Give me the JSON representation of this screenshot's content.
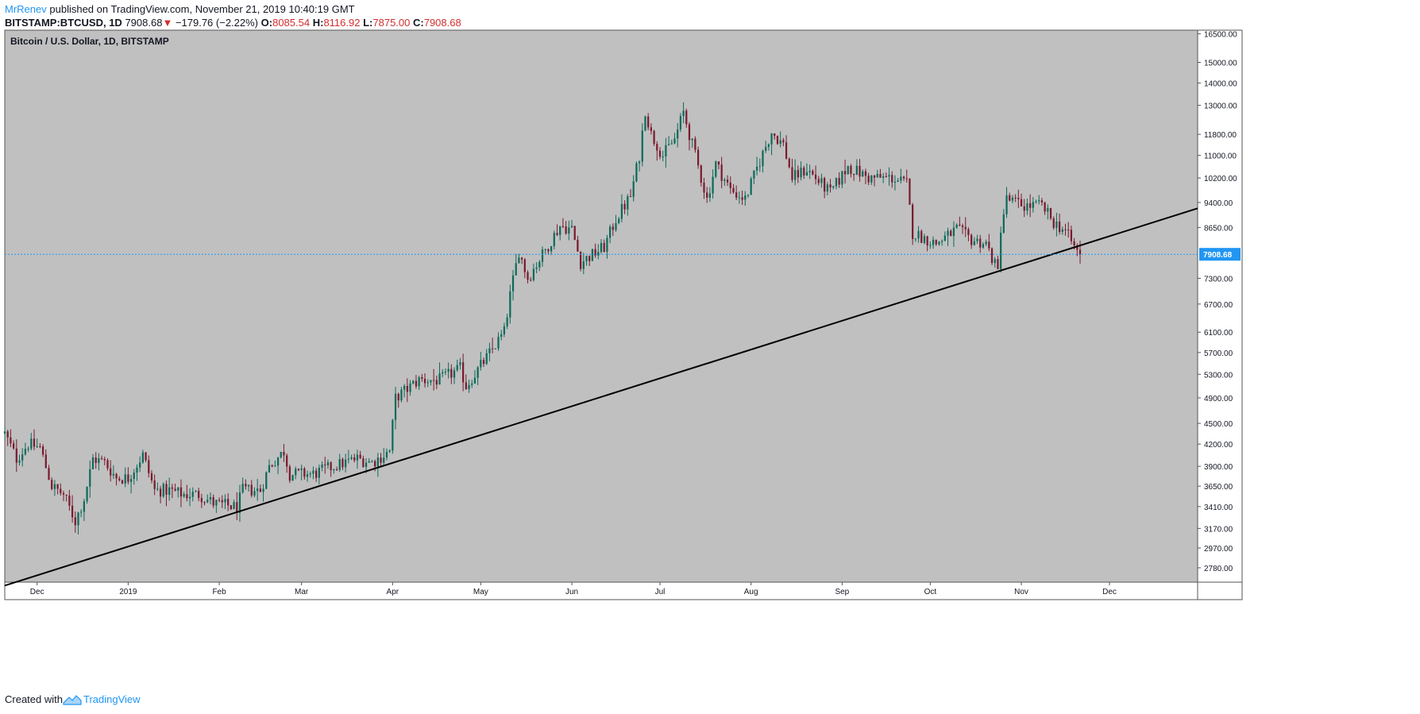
{
  "header": {
    "author": "MrRenev",
    "published_text": "published on TradingView.com, November 21, 2019 10:40:19 GMT",
    "symbol": "BITSTAMP:BTCUSD, 1D",
    "last": "7908.68",
    "change_arrow": "▼",
    "change": "−179.76 (−2.22%)",
    "open_label": "O:",
    "open": "8085.54",
    "high_label": "H:",
    "high": "8116.92",
    "low_label": "L:",
    "low": "7875.00",
    "close_label": "C:",
    "close": "7908.68"
  },
  "footer": {
    "created_with": "Created with",
    "brand": "TradingView"
  },
  "colors": {
    "background": "#c0c0c0",
    "up_candle": "#0d6a5a",
    "down_candle": "#7a1a2e",
    "price_line": "#2196f3",
    "trendline": "#000000",
    "down_text": "#d32f2f"
  },
  "chart_data": {
    "type": "candlestick",
    "title": "Bitcoin / U.S. Dollar, 1D, BITSTAMP",
    "scale": "log",
    "ylim": [
      2650,
      16700
    ],
    "y_ticks": [
      "16500.00",
      "15000.00",
      "14000.00",
      "13000.00",
      "11800.00",
      "11000.00",
      "10200.00",
      "9400.00",
      "8650.00",
      "7908.68",
      "7300.00",
      "6700.00",
      "6100.00",
      "5700.00",
      "5300.00",
      "4900.00",
      "4500.00",
      "4200.00",
      "3900.00",
      "3650.00",
      "3410.00",
      "3170.00",
      "2970.00",
      "2780.00"
    ],
    "x_ticks": [
      "Dec",
      "2019",
      "Feb",
      "Mar",
      "Apr",
      "May",
      "Jun",
      "Jul",
      "Aug",
      "Sep",
      "Oct",
      "Nov",
      "Dec"
    ],
    "last_price": 7908.68,
    "last_price_label": "7908.68",
    "close_path": [
      [
        "2018-11-20",
        4350
      ],
      [
        "2018-11-24",
        4000
      ],
      [
        "2018-11-28",
        4200
      ],
      [
        "2018-12-02",
        4150
      ],
      [
        "2018-12-06",
        3650
      ],
      [
        "2018-12-10",
        3550
      ],
      [
        "2018-12-14",
        3250
      ],
      [
        "2018-12-17",
        3500
      ],
      [
        "2018-12-20",
        4000
      ],
      [
        "2018-12-24",
        3950
      ],
      [
        "2018-12-28",
        3750
      ],
      [
        "2019-01-01",
        3750
      ],
      [
        "2019-01-06",
        4050
      ],
      [
        "2019-01-10",
        3600
      ],
      [
        "2019-01-15",
        3600
      ],
      [
        "2019-01-20",
        3550
      ],
      [
        "2019-01-25",
        3550
      ],
      [
        "2019-01-30",
        3450
      ],
      [
        "2019-02-04",
        3420
      ],
      [
        "2019-02-07",
        3400
      ],
      [
        "2019-02-09",
        3600
      ],
      [
        "2019-02-15",
        3600
      ],
      [
        "2019-02-18",
        3900
      ],
      [
        "2019-02-23",
        4100
      ],
      [
        "2019-02-25",
        3800
      ],
      [
        "2019-03-05",
        3800
      ],
      [
        "2019-03-12",
        3900
      ],
      [
        "2019-03-20",
        4000
      ],
      [
        "2019-03-25",
        3950
      ],
      [
        "2019-03-31",
        4100
      ],
      [
        "2019-04-02",
        4900
      ],
      [
        "2019-04-10",
        5200
      ],
      [
        "2019-04-17",
        5200
      ],
      [
        "2019-04-24",
        5400
      ],
      [
        "2019-04-26",
        5100
      ],
      [
        "2019-05-03",
        5600
      ],
      [
        "2019-05-09",
        6100
      ],
      [
        "2019-05-11",
        6900
      ],
      [
        "2019-05-14",
        8000
      ],
      [
        "2019-05-17",
        7300
      ],
      [
        "2019-05-22",
        7900
      ],
      [
        "2019-05-28",
        8700
      ],
      [
        "2019-06-01",
        8600
      ],
      [
        "2019-06-04",
        7700
      ],
      [
        "2019-06-08",
        7900
      ],
      [
        "2019-06-12",
        8100
      ],
      [
        "2019-06-16",
        8900
      ],
      [
        "2019-06-21",
        9600
      ],
      [
        "2019-06-24",
        11000
      ],
      [
        "2019-06-26",
        12800
      ],
      [
        "2019-06-28",
        11800
      ],
      [
        "2019-07-02",
        11000
      ],
      [
        "2019-07-06",
        11600
      ],
      [
        "2019-07-09",
        12700
      ],
      [
        "2019-07-14",
        10600
      ],
      [
        "2019-07-17",
        9500
      ],
      [
        "2019-07-20",
        10700
      ],
      [
        "2019-07-25",
        9800
      ],
      [
        "2019-07-30",
        9500
      ],
      [
        "2019-08-04",
        10800
      ],
      [
        "2019-08-08",
        11900
      ],
      [
        "2019-08-12",
        11400
      ],
      [
        "2019-08-15",
        10200
      ],
      [
        "2019-08-20",
        10500
      ],
      [
        "2019-08-28",
        9700
      ],
      [
        "2019-09-03",
        10600
      ],
      [
        "2019-09-10",
        10200
      ],
      [
        "2019-09-18",
        10200
      ],
      [
        "2019-09-23",
        10000
      ],
      [
        "2019-09-25",
        8500
      ],
      [
        "2019-10-03",
        8200
      ],
      [
        "2019-10-10",
        8600
      ],
      [
        "2019-10-15",
        8300
      ],
      [
        "2019-10-20",
        8200
      ],
      [
        "2019-10-24",
        7450
      ],
      [
        "2019-10-25",
        8650
      ],
      [
        "2019-10-27",
        9500
      ],
      [
        "2019-11-02",
        9300
      ],
      [
        "2019-11-08",
        9300
      ],
      [
        "2019-11-12",
        8800
      ],
      [
        "2019-11-16",
        8550
      ],
      [
        "2019-11-19",
        8100
      ],
      [
        "2019-11-21",
        7908.68
      ]
    ],
    "trendline": {
      "label": "",
      "points": [
        [
          "2018-11-20",
          2620
        ],
        [
          "2019-12-30",
          9220
        ]
      ]
    }
  }
}
